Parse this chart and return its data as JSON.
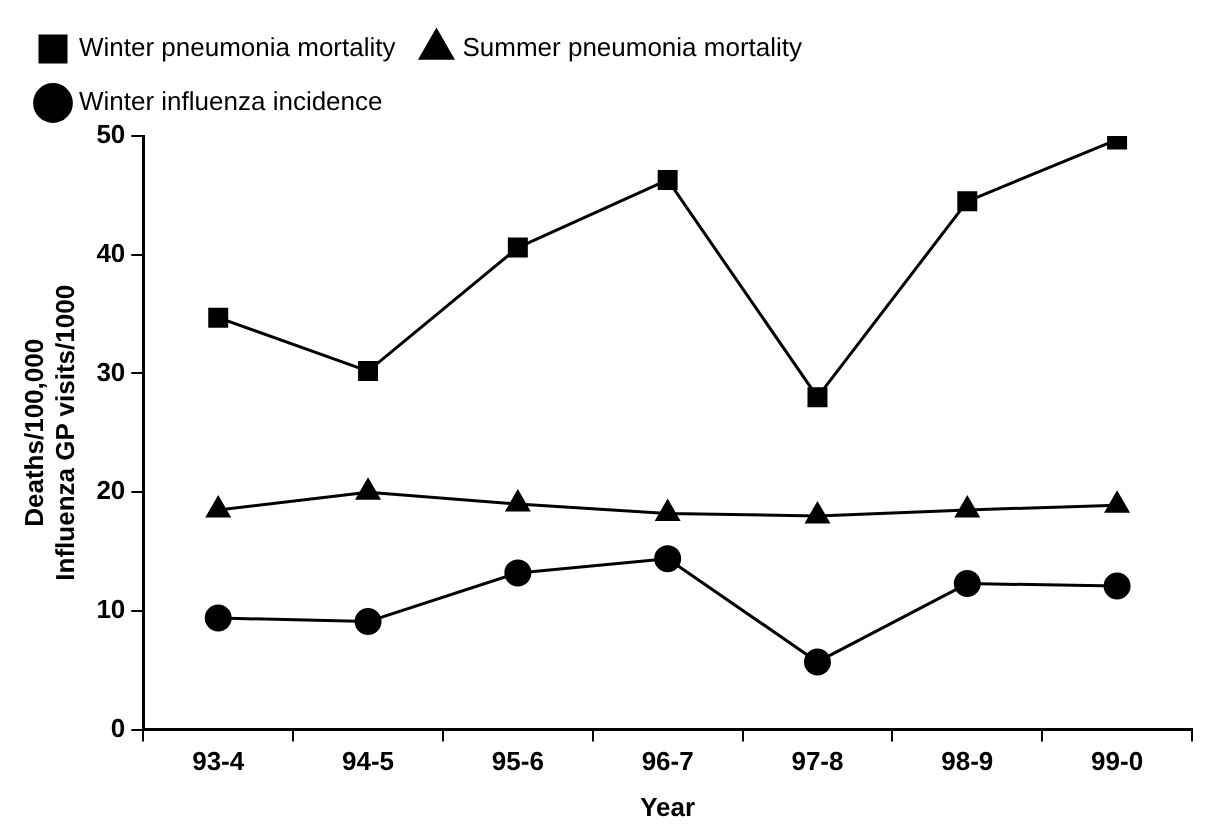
{
  "chart_data": {
    "type": "line",
    "xlabel": "Year",
    "ylabel": "Deaths/100,000\nInfluenza GP visits/1000",
    "categories": [
      "93-4",
      "94-5",
      "95-6",
      "96-7",
      "97-8",
      "98-9",
      "99-0"
    ],
    "series": [
      {
        "name": "Winter pneumonia mortality",
        "color": "#000000",
        "marker": "square",
        "values": [
          34.7,
          30.2,
          40.6,
          46.3,
          28,
          44.5,
          49.7
        ]
      },
      {
        "name": "Summer pneumonia mortality",
        "color": "#000000",
        "marker": "triangle",
        "values": [
          18.5,
          20,
          19,
          18.2,
          18,
          18.5,
          18.9
        ]
      },
      {
        "name": "Winter influenza incidence",
        "color": "#000000",
        "marker": "circle",
        "values": [
          9.4,
          9.1,
          13.2,
          14.4,
          5.7,
          12.3,
          12.1
        ]
      }
    ],
    "ylim": [
      0,
      50
    ],
    "yticks": [
      0,
      10,
      20,
      30,
      40,
      50
    ],
    "grid": false,
    "legend": "top",
    "line_style": "solid"
  }
}
